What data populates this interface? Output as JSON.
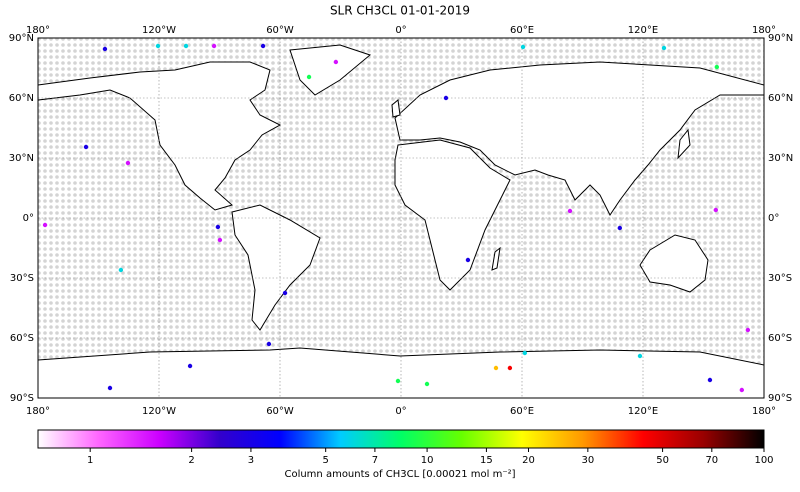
{
  "chart_data": {
    "type": "map",
    "title": "SLR CH3CL 01-01-2019",
    "xlim": [
      -180,
      180
    ],
    "ylim": [
      -90,
      90
    ],
    "xticks": [
      {
        "value": -180,
        "label": "180°"
      },
      {
        "value": -120,
        "label": "120°W"
      },
      {
        "value": -60,
        "label": "60°W"
      },
      {
        "value": 0,
        "label": "0°"
      },
      {
        "value": 60,
        "label": "60°E"
      },
      {
        "value": 120,
        "label": "120°E"
      },
      {
        "value": 180,
        "label": "180°"
      }
    ],
    "yticks": [
      {
        "value": 90,
        "label": "90°N"
      },
      {
        "value": 60,
        "label": "60°N"
      },
      {
        "value": 30,
        "label": "30°N"
      },
      {
        "value": 0,
        "label": "0°"
      },
      {
        "value": -30,
        "label": "30°S"
      },
      {
        "value": -60,
        "label": "60°S"
      },
      {
        "value": -90,
        "label": "90°S"
      }
    ],
    "grid": true,
    "colorbar": {
      "label": "Column amounts of CH3CL [0.00021 mol m⁻²]",
      "lim": [
        0.7,
        100
      ],
      "log": true,
      "ticks": [
        1,
        2,
        3,
        5,
        7,
        10,
        15,
        20,
        30,
        50,
        70,
        100
      ],
      "colormap": [
        "#ffffff",
        "#ff66ff",
        "#cc00ff",
        "#3300cc",
        "#0000ff",
        "#00ccff",
        "#00ff66",
        "#66ff00",
        "#ffff00",
        "#ff9900",
        "#ff0000",
        "#990000",
        "#000000"
      ]
    },
    "points": [
      {
        "lon": -146.8,
        "lat": 84.5,
        "value": 3
      },
      {
        "lon": -120.5,
        "lat": 86,
        "value": 6
      },
      {
        "lon": -106.6,
        "lat": 86,
        "value": 6
      },
      {
        "lon": -92.7,
        "lat": 86,
        "value": 1.5
      },
      {
        "lon": -68.4,
        "lat": 86,
        "value": 3
      },
      {
        "lon": -32.3,
        "lat": 78,
        "value": 1.5
      },
      {
        "lon": -45.6,
        "lat": 70.5,
        "value": 9
      },
      {
        "lon": 22.3,
        "lat": 60,
        "value": 3
      },
      {
        "lon": 60.5,
        "lat": 85.5,
        "value": 6
      },
      {
        "lon": 130.4,
        "lat": 85,
        "value": 6
      },
      {
        "lon": 156.6,
        "lat": 75.5,
        "value": 9
      },
      {
        "lon": -156.2,
        "lat": 35.5,
        "value": 3
      },
      {
        "lon": -135.4,
        "lat": 27.5,
        "value": 1.5
      },
      {
        "lon": -90.8,
        "lat": -4.5,
        "value": 3
      },
      {
        "lon": -89.8,
        "lat": -11,
        "value": 1.5
      },
      {
        "lon": -138.9,
        "lat": -26,
        "value": 6
      },
      {
        "lon": -57.5,
        "lat": -37.5,
        "value": 3
      },
      {
        "lon": 33.2,
        "lat": -21,
        "value": 3
      },
      {
        "lon": 83.8,
        "lat": 3.5,
        "value": 1.5
      },
      {
        "lon": 108.5,
        "lat": -5,
        "value": 3
      },
      {
        "lon": 156.1,
        "lat": 4,
        "value": 1.5
      },
      {
        "lon": -65.5,
        "lat": -63,
        "value": 3
      },
      {
        "lon": -104.6,
        "lat": -74,
        "value": 3
      },
      {
        "lon": -1.5,
        "lat": -81.5,
        "value": 9
      },
      {
        "lon": 12.9,
        "lat": -83,
        "value": 9
      },
      {
        "lon": 47.1,
        "lat": -75,
        "value": 25
      },
      {
        "lon": 54,
        "lat": -75,
        "value": 45
      },
      {
        "lon": 61.4,
        "lat": -67.5,
        "value": 6
      },
      {
        "lon": -144.3,
        "lat": -85,
        "value": 3
      },
      {
        "lon": 169,
        "lat": -86,
        "value": 1.5
      },
      {
        "lon": 118.5,
        "lat": -69,
        "value": 6
      },
      {
        "lon": 153.2,
        "lat": -81,
        "value": 3
      },
      {
        "lon": -176.5,
        "lat": -3.5,
        "value": 1.5
      },
      {
        "lon": 172,
        "lat": -56,
        "value": 1.5
      }
    ]
  }
}
